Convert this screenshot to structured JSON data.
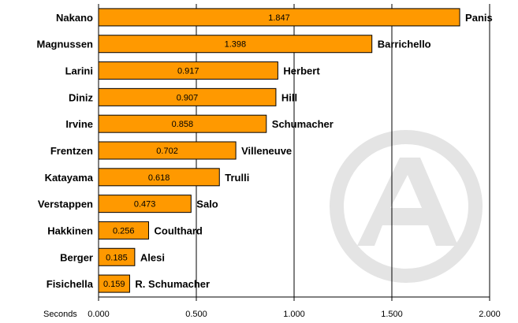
{
  "chart_data": {
    "type": "bar",
    "orientation": "horizontal",
    "categories": [
      "Nakano",
      "Magnussen",
      "Larini",
      "Diniz",
      "Irvine",
      "Frentzen",
      "Katayama",
      "Verstappen",
      "Hakkinen",
      "Berger",
      "Fisichella"
    ],
    "values": [
      1.847,
      1.398,
      0.917,
      0.907,
      0.858,
      0.702,
      0.618,
      0.473,
      0.256,
      0.185,
      0.159
    ],
    "value_labels": [
      "1.847",
      "1.398",
      "0.917",
      "0.907",
      "0.858",
      "0.702",
      "0.618",
      "0.473",
      "0.256",
      "0.185",
      "0.159"
    ],
    "right_labels": [
      "Panis",
      "Barrichello",
      "Herbert",
      "Hill",
      "Schumacher",
      "Villeneuve",
      "Trulli",
      "Salo",
      "Coulthard",
      "Alesi",
      "R. Schumacher"
    ],
    "xlabel": "Seconds",
    "xlim": [
      0,
      2
    ],
    "xticks": [
      "0.000",
      "0.500",
      "1.000",
      "1.500",
      "2.000"
    ],
    "grid": true,
    "bar_color": "#ff9900",
    "bar_edge_color": "#000000",
    "watermark": "A"
  }
}
